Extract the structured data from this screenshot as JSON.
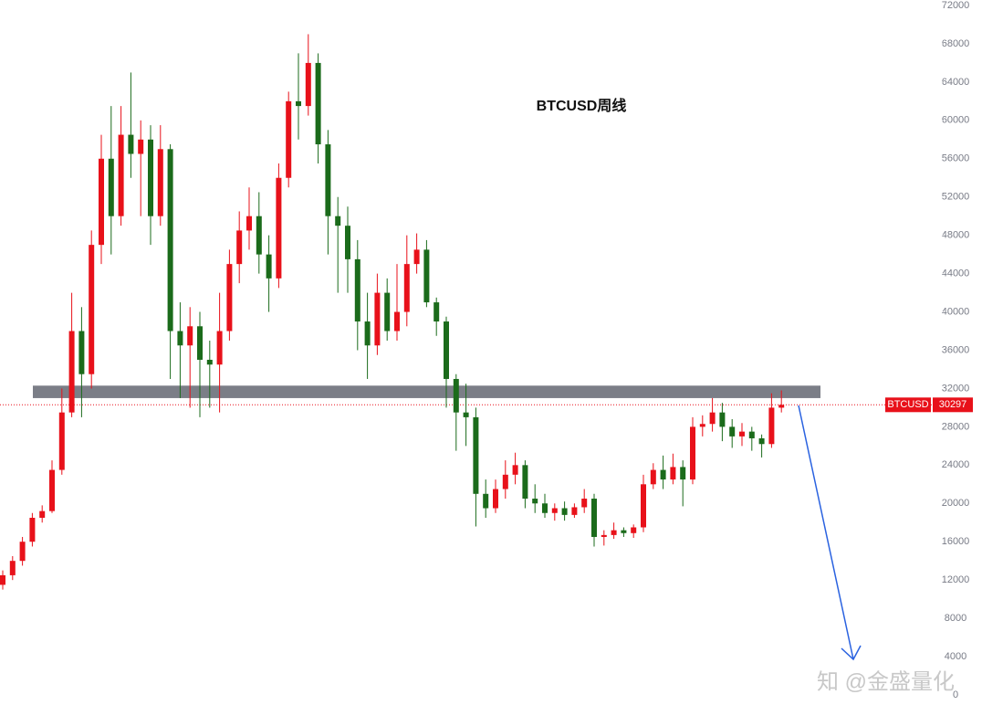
{
  "chart_data": {
    "type": "candlestick",
    "title": "BTCUSD周线",
    "ylim": [
      0,
      72000
    ],
    "yticks": [
      0,
      4000,
      8000,
      12000,
      16000,
      20000,
      24000,
      28000,
      32000,
      36000,
      40000,
      44000,
      48000,
      52000,
      56000,
      60000,
      64000,
      68000,
      72000
    ],
    "up_color": "#e8111a",
    "down_color": "#1b6b1b",
    "resistance": [
      31000,
      32300
    ],
    "resistance_color": "#7b7e87",
    "last_label": "BTCUSD",
    "last_price": 30297,
    "watermark": "知 @金盛量化",
    "ohlc": [
      [
        11500,
        13000,
        11000,
        12500
      ],
      [
        12500,
        14500,
        12000,
        14000
      ],
      [
        14000,
        16500,
        13500,
        16000
      ],
      [
        16000,
        19000,
        15500,
        18500
      ],
      [
        18500,
        19800,
        18000,
        19200
      ],
      [
        19200,
        24500,
        19000,
        23500
      ],
      [
        23500,
        32000,
        23000,
        29500
      ],
      [
        29500,
        42000,
        29000,
        38000
      ],
      [
        38000,
        40500,
        29000,
        33500
      ],
      [
        33500,
        48500,
        32000,
        47000
      ],
      [
        47000,
        58500,
        45000,
        56000
      ],
      [
        56000,
        61500,
        46000,
        50000
      ],
      [
        50000,
        61500,
        49000,
        58500
      ],
      [
        58500,
        65000,
        54000,
        56500
      ],
      [
        56500,
        60000,
        50000,
        58000
      ],
      [
        58000,
        59500,
        47000,
        50000
      ],
      [
        50000,
        59500,
        49000,
        57000
      ],
      [
        57000,
        57500,
        33000,
        38000
      ],
      [
        38000,
        41000,
        31000,
        36500
      ],
      [
        36500,
        40500,
        30000,
        38500
      ],
      [
        38500,
        40000,
        29000,
        35000
      ],
      [
        35000,
        37000,
        30000,
        34500
      ],
      [
        34500,
        42000,
        29500,
        38000
      ],
      [
        38000,
        46500,
        37000,
        45000
      ],
      [
        45000,
        50500,
        43000,
        48500
      ],
      [
        48500,
        53000,
        46500,
        50000
      ],
      [
        50000,
        52500,
        44000,
        46000
      ],
      [
        46000,
        48000,
        40000,
        43500
      ],
      [
        43500,
        55500,
        42500,
        54000
      ],
      [
        54000,
        63000,
        53000,
        62000
      ],
      [
        62000,
        67000,
        58000,
        61500
      ],
      [
        61500,
        69000,
        60500,
        66000
      ],
      [
        66000,
        67000,
        55500,
        57500
      ],
      [
        57500,
        59000,
        46000,
        50000
      ],
      [
        50000,
        52000,
        42000,
        49000
      ],
      [
        49000,
        51000,
        42000,
        45500
      ],
      [
        45500,
        47500,
        36000,
        39000
      ],
      [
        39000,
        42000,
        33000,
        36500
      ],
      [
        36500,
        44000,
        35500,
        42000
      ],
      [
        42000,
        43500,
        37000,
        38000
      ],
      [
        38000,
        45000,
        37000,
        40000
      ],
      [
        40000,
        48000,
        38500,
        45000
      ],
      [
        45000,
        48200,
        44000,
        46500
      ],
      [
        46500,
        47500,
        40500,
        41000
      ],
      [
        41000,
        41500,
        37500,
        39000
      ],
      [
        39000,
        39500,
        30000,
        33000
      ],
      [
        33000,
        33500,
        25500,
        29500
      ],
      [
        29500,
        32500,
        26000,
        29000
      ],
      [
        29000,
        30000,
        17600,
        21000
      ],
      [
        21000,
        22500,
        18500,
        19500
      ],
      [
        19500,
        22500,
        19000,
        21500
      ],
      [
        21500,
        24500,
        20500,
        23000
      ],
      [
        23000,
        25300,
        22000,
        24000
      ],
      [
        24000,
        24500,
        19500,
        20500
      ],
      [
        20500,
        22000,
        19000,
        20000
      ],
      [
        20000,
        21000,
        18500,
        19000
      ],
      [
        19000,
        20000,
        18200,
        19500
      ],
      [
        19500,
        20200,
        18200,
        18800
      ],
      [
        18800,
        20000,
        18500,
        19600
      ],
      [
        19600,
        21500,
        19000,
        20500
      ],
      [
        20500,
        21000,
        15500,
        16500
      ],
      [
        16500,
        17200,
        15600,
        16700
      ],
      [
        16700,
        18000,
        16300,
        17200
      ],
      [
        17200,
        17500,
        16500,
        16900
      ],
      [
        16900,
        17800,
        16400,
        17500
      ],
      [
        17500,
        23000,
        17000,
        22000
      ],
      [
        22000,
        24200,
        21500,
        23500
      ],
      [
        23500,
        25000,
        21500,
        22500
      ],
      [
        22500,
        25200,
        22000,
        23800
      ],
      [
        23800,
        24500,
        19700,
        22500
      ],
      [
        22500,
        29000,
        22000,
        28000
      ],
      [
        28000,
        29200,
        27000,
        28300
      ],
      [
        28300,
        31000,
        27500,
        29500
      ],
      [
        29500,
        30500,
        26500,
        28000
      ],
      [
        28000,
        28800,
        25800,
        27000
      ],
      [
        27000,
        28400,
        26000,
        27500
      ],
      [
        27500,
        28000,
        25500,
        26800
      ],
      [
        26800,
        27200,
        24800,
        26200
      ],
      [
        26200,
        31500,
        25800,
        30000
      ],
      [
        30000,
        31800,
        29500,
        30297
      ]
    ]
  }
}
